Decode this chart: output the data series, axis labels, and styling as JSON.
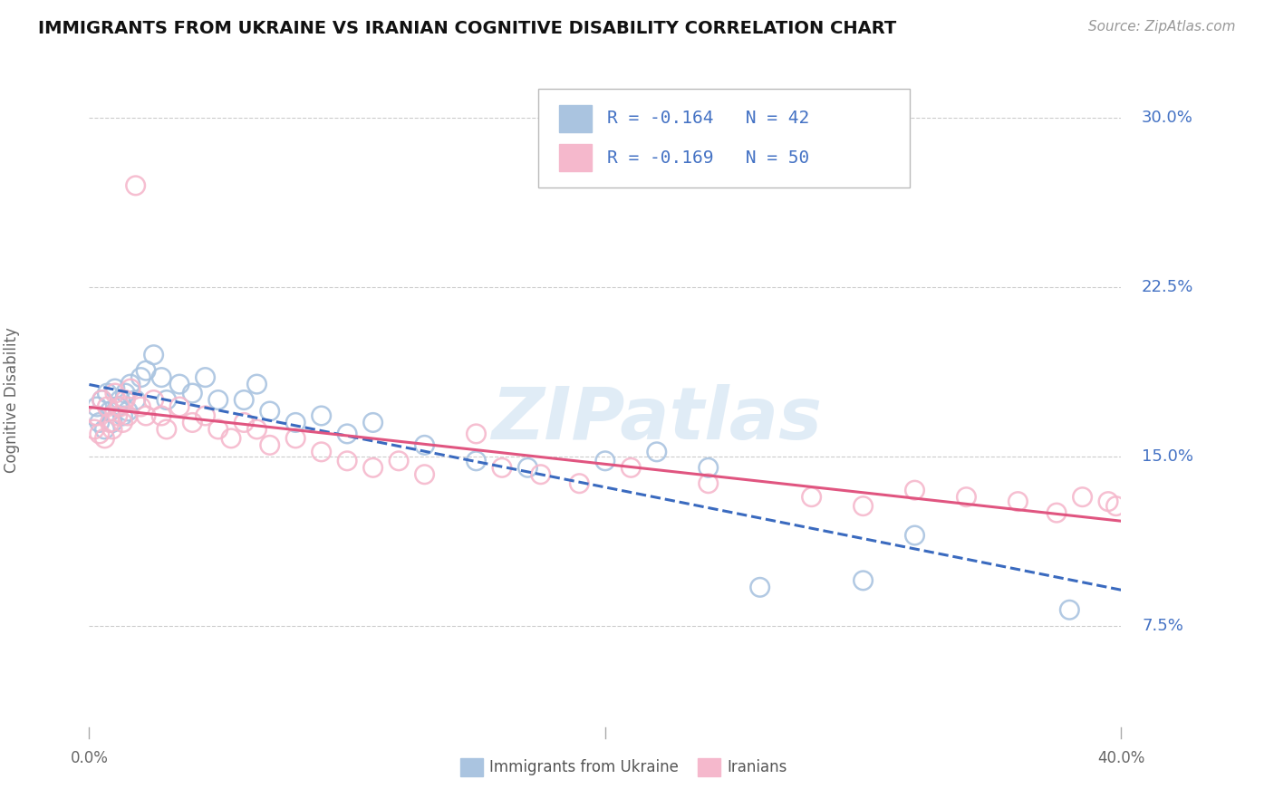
{
  "title": "IMMIGRANTS FROM UKRAINE VS IRANIAN COGNITIVE DISABILITY CORRELATION CHART",
  "source": "Source: ZipAtlas.com",
  "ylabel": "Cognitive Disability",
  "xlim": [
    0.0,
    0.4
  ],
  "ylim": [
    0.03,
    0.32
  ],
  "yticks": [
    0.075,
    0.15,
    0.225,
    0.3
  ],
  "ytick_labels": [
    "7.5%",
    "15.0%",
    "22.5%",
    "30.0%"
  ],
  "xtick_positions": [
    0.0,
    0.2,
    0.4
  ],
  "xtick_labels": [
    "0.0%",
    "",
    "40.0%"
  ],
  "background_color": "#ffffff",
  "grid_color": "#cccccc",
  "ukraine_color": "#aac4e0",
  "iran_color": "#f5b8cc",
  "ukraine_line_color": "#3a6abf",
  "iran_line_color": "#e05580",
  "ukraine_R": "-0.164",
  "ukraine_N": "42",
  "iran_R": "-0.169",
  "iran_N": "50",
  "legend_label_ukraine": "Immigrants from Ukraine",
  "legend_label_iran": "Iranians",
  "watermark": "ZIPatlas",
  "label_color": "#4472c4",
  "ukraine_x": [
    0.002,
    0.003,
    0.004,
    0.005,
    0.006,
    0.007,
    0.008,
    0.009,
    0.01,
    0.011,
    0.012,
    0.013,
    0.014,
    0.015,
    0.016,
    0.018,
    0.02,
    0.022,
    0.025,
    0.028,
    0.03,
    0.035,
    0.04,
    0.045,
    0.05,
    0.06,
    0.065,
    0.07,
    0.08,
    0.09,
    0.1,
    0.11,
    0.13,
    0.15,
    0.17,
    0.2,
    0.22,
    0.24,
    0.26,
    0.3,
    0.32,
    0.38
  ],
  "ukraine_y": [
    0.168,
    0.172,
    0.165,
    0.175,
    0.162,
    0.178,
    0.17,
    0.165,
    0.18,
    0.172,
    0.175,
    0.168,
    0.178,
    0.17,
    0.182,
    0.175,
    0.185,
    0.188,
    0.195,
    0.185,
    0.175,
    0.182,
    0.178,
    0.185,
    0.175,
    0.175,
    0.182,
    0.17,
    0.165,
    0.168,
    0.16,
    0.165,
    0.155,
    0.148,
    0.145,
    0.148,
    0.152,
    0.145,
    0.092,
    0.095,
    0.115,
    0.082
  ],
  "iran_x": [
    0.002,
    0.003,
    0.004,
    0.005,
    0.006,
    0.007,
    0.008,
    0.009,
    0.01,
    0.011,
    0.012,
    0.013,
    0.014,
    0.015,
    0.016,
    0.018,
    0.02,
    0.022,
    0.025,
    0.028,
    0.03,
    0.035,
    0.04,
    0.045,
    0.05,
    0.055,
    0.06,
    0.065,
    0.07,
    0.08,
    0.09,
    0.1,
    0.11,
    0.12,
    0.13,
    0.15,
    0.16,
    0.175,
    0.19,
    0.21,
    0.24,
    0.28,
    0.3,
    0.32,
    0.34,
    0.36,
    0.375,
    0.385,
    0.395,
    0.398
  ],
  "iran_y": [
    0.162,
    0.168,
    0.16,
    0.175,
    0.158,
    0.172,
    0.165,
    0.162,
    0.178,
    0.168,
    0.172,
    0.165,
    0.175,
    0.168,
    0.18,
    0.27,
    0.172,
    0.168,
    0.175,
    0.168,
    0.162,
    0.172,
    0.165,
    0.168,
    0.162,
    0.158,
    0.165,
    0.162,
    0.155,
    0.158,
    0.152,
    0.148,
    0.145,
    0.148,
    0.142,
    0.16,
    0.145,
    0.142,
    0.138,
    0.145,
    0.138,
    0.132,
    0.128,
    0.135,
    0.132,
    0.13,
    0.125,
    0.132,
    0.13,
    0.128
  ]
}
